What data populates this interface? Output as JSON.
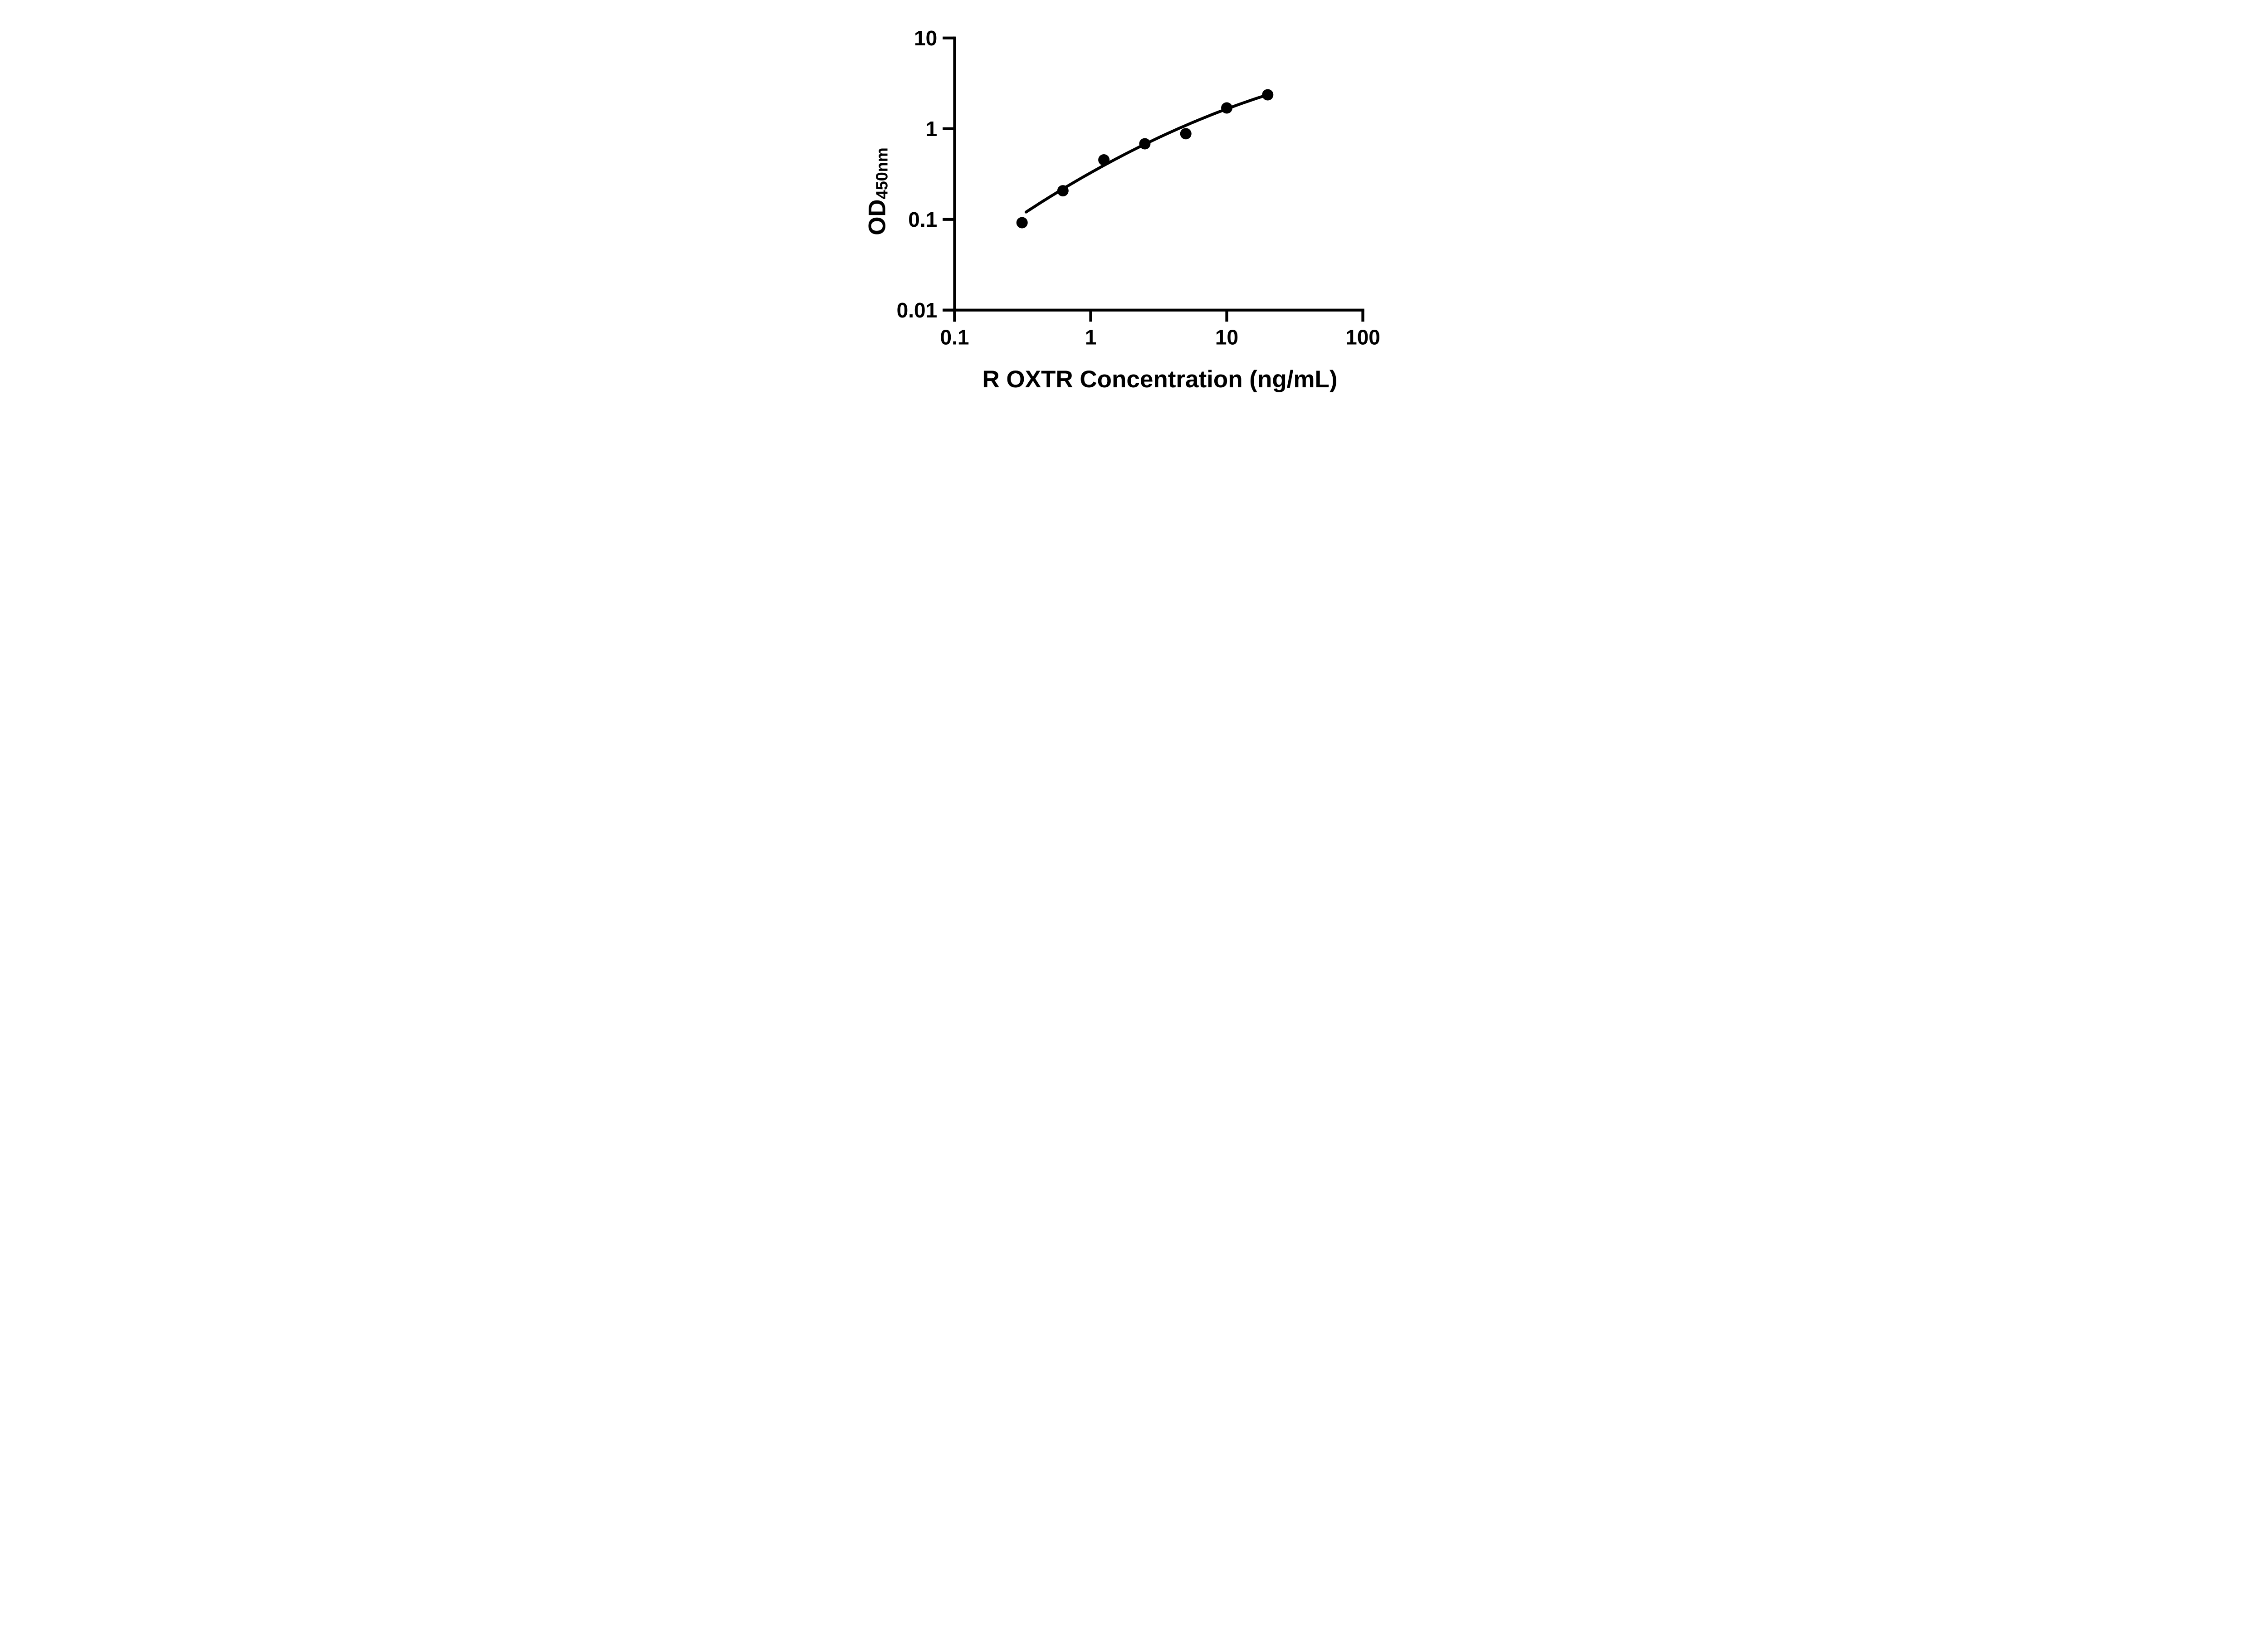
{
  "chart_data": {
    "type": "scatter",
    "title": "",
    "xlabel": "R OXTR Concentration (ng/mL)",
    "ylabel": {
      "main": "OD",
      "sub": "450nm"
    },
    "x_scale": "log",
    "y_scale": "log",
    "xlim": [
      0.1,
      100
    ],
    "ylim": [
      0.01,
      10
    ],
    "x_tick_labels": [
      "0.1",
      "1",
      "10",
      "100"
    ],
    "y_tick_labels": [
      "10",
      "1",
      "0.1",
      "0.01"
    ],
    "grid": false,
    "legend": false,
    "series": [
      {
        "name": "standard-curve-points",
        "marker": "filled-circle",
        "color": "#000000",
        "x_ng_ml": [
          0.313,
          0.625,
          1.25,
          2.5,
          5,
          10,
          20
        ],
        "od450": [
          0.092,
          0.207,
          0.453,
          0.682,
          0.881,
          1.694,
          2.365
        ]
      }
    ],
    "trendline": {
      "style": "solid",
      "color": "#000000",
      "model": "w = a + b*u + c*u^2 in log-log space, u = log10(x/0.1), w = log10(y/0.01)",
      "a": 0.5274,
      "b": 1.1288,
      "c": -0.1417,
      "u_start": 0.525,
      "u_end": 2.301
    }
  },
  "colors": {
    "foreground": "#000000",
    "background": "#ffffff"
  }
}
